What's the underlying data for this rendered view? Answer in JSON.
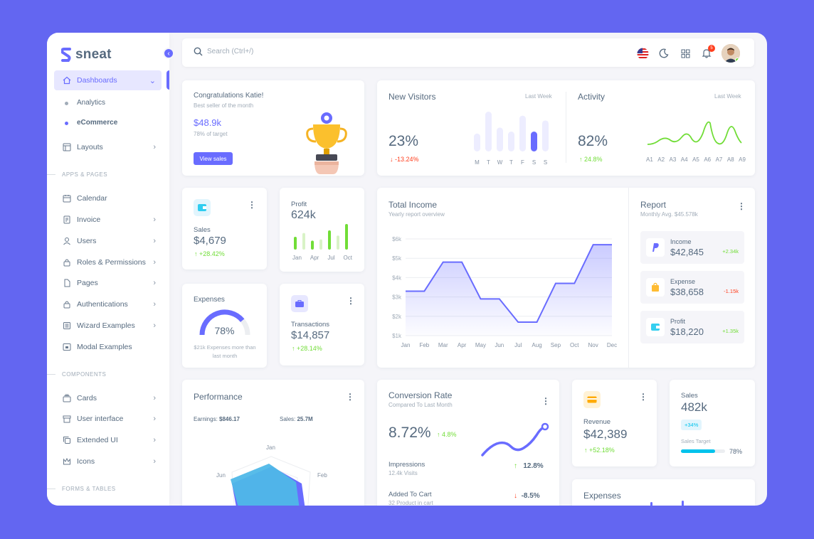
{
  "app": {
    "name": "sneat"
  },
  "sidebar": {
    "dashboards_label": "Dashboards",
    "sub_items": [
      "Analytics",
      "eCommerce"
    ],
    "layouts_label": "Layouts",
    "sections": [
      "APPS & PAGES",
      "COMPONENTS",
      "FORMS & TABLES"
    ],
    "apps": [
      {
        "label": "Calendar",
        "icon": "calendar-icon"
      },
      {
        "label": "Invoice",
        "icon": "invoice-icon"
      },
      {
        "label": "Users",
        "icon": "user-icon"
      },
      {
        "label": "Roles & Permissions",
        "icon": "lock-icon"
      },
      {
        "label": "Pages",
        "icon": "file-icon"
      },
      {
        "label": "Authentications",
        "icon": "lock-icon"
      },
      {
        "label": "Wizard Examples",
        "icon": "list-icon"
      },
      {
        "label": "Modal Examples",
        "icon": "window-icon"
      }
    ],
    "components": [
      {
        "label": "Cards",
        "icon": "cards-icon"
      },
      {
        "label": "User interface",
        "icon": "box-icon"
      },
      {
        "label": "Extended UI",
        "icon": "copy-icon"
      },
      {
        "label": "Icons",
        "icon": "crown-icon"
      }
    ]
  },
  "navbar": {
    "search_placeholder": "Search (Ctrl+/)",
    "notification_count": "5"
  },
  "congrats": {
    "title": "Congratulations Katie!",
    "subtitle": "Best seller of the month",
    "amount": "$48.9k",
    "target": "78% of target",
    "button": "View sales"
  },
  "visitors": {
    "title": "New Visitors",
    "period": "Last Week",
    "value": "23%",
    "change": "-13.24%",
    "days": [
      "M",
      "T",
      "W",
      "T",
      "F",
      "S",
      "S"
    ],
    "bars": [
      0.45,
      1.0,
      0.6,
      0.5,
      0.9,
      0.5,
      0.78
    ],
    "highlight_index": 5
  },
  "activity": {
    "title": "Activity",
    "period": "Last Week",
    "value": "82%",
    "change": "24.8%",
    "labels": [
      "A1",
      "A2",
      "A3",
      "A4",
      "A5",
      "A6",
      "A7",
      "A8",
      "A9"
    ]
  },
  "sales_card": {
    "label": "Sales",
    "value": "$4,679",
    "change": "+28.42%"
  },
  "profit_card": {
    "label": "Profit",
    "value": "624k",
    "months": [
      "Jan",
      "Apr",
      "Jul",
      "Oct"
    ],
    "bars": [
      0.5,
      0.65,
      0.35,
      0.4,
      0.75,
      0.55,
      1.0
    ]
  },
  "expenses_card": {
    "label": "Expenses",
    "value": "78%",
    "progress": 0.78,
    "note": "$21k Expenses more than last month"
  },
  "transactions_card": {
    "label": "Transactions",
    "value": "$14,857",
    "change": "+28.14%"
  },
  "total_income": {
    "title": "Total Income",
    "subtitle": "Yearly report overview",
    "y_ticks": [
      "$6k",
      "$5k",
      "$4k",
      "$3k",
      "$2k",
      "$1k"
    ]
  },
  "report": {
    "title": "Report",
    "subtitle": "Monthly Avg. $45.578k",
    "rows": [
      {
        "label": "Income",
        "value": "$42,845",
        "change": "+2.34k",
        "icon": "paypal-icon"
      },
      {
        "label": "Expense",
        "value": "$38,658",
        "change": "-1.15k",
        "icon": "shopping-bag-icon"
      },
      {
        "label": "Profit",
        "value": "$18,220",
        "change": "+1.35k",
        "icon": "wallet-icon"
      }
    ]
  },
  "performance": {
    "title": "Performance",
    "earnings_label": "Earnings:",
    "earnings_value": "$846.17",
    "sales_label": "Sales:",
    "sales_value": "25.7M",
    "axis": [
      "Jan",
      "Jun",
      "Feb"
    ]
  },
  "conversion": {
    "title": "Conversion Rate",
    "subtitle": "Compared To Last Month",
    "value": "8.72%",
    "change": "4.8%",
    "rows": [
      {
        "label": "Impressions",
        "sub": "12.4k Visits",
        "value": "12.8%",
        "dir": "up"
      },
      {
        "label": "Added To Cart",
        "sub": "32 Product in cart",
        "value": "-8.5%",
        "dir": "down"
      }
    ]
  },
  "revenue": {
    "label": "Revenue",
    "value": "$42,389",
    "change": "+52.18%"
  },
  "sales_target": {
    "label": "Sales",
    "value": "482k",
    "badge": "+34%",
    "target_label": "Sales Target",
    "progress_text": "78%",
    "progress": 0.78
  },
  "expenses_bottom": {
    "title": "Expenses"
  },
  "chart_data": [
    {
      "type": "line",
      "title": "Total Income",
      "categories": [
        "Jan",
        "Feb",
        "Mar",
        "Apr",
        "May",
        "Jun",
        "Jul",
        "Aug",
        "Sep",
        "Oct",
        "Nov",
        "Dec"
      ],
      "values": [
        3.3,
        3.3,
        4.8,
        4.8,
        2.9,
        2.9,
        1.7,
        1.7,
        3.7,
        3.7,
        5.7,
        5.7
      ],
      "ylim": [
        1,
        6
      ]
    },
    {
      "type": "bar",
      "title": "New Visitors",
      "categories": [
        "M",
        "T",
        "W",
        "T",
        "F",
        "S",
        "S"
      ],
      "values": [
        0.45,
        1.0,
        0.6,
        0.5,
        0.9,
        0.5,
        0.78
      ]
    }
  ]
}
